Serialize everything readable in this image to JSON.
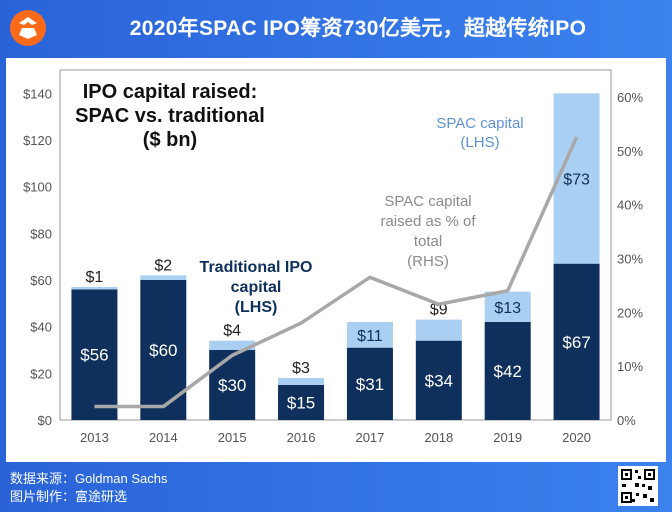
{
  "header": {
    "title": "2020年SPAC IPO筹资730亿美元，超越传统IPO"
  },
  "footer": {
    "source": "数据来源：Goldman Sachs",
    "producer": "图片制作：富途研选"
  },
  "colors": {
    "traditional": "#0f2f5c",
    "spac": "#a9d0f2",
    "line": "#a8a8a8",
    "label_light": "#5d93d6"
  },
  "icons": {
    "logo": "futu-logo-icon",
    "qr": "qr-code-icon"
  },
  "chart_data": {
    "type": "bar",
    "title": "IPO capital raised:\nSPAC vs. traditional\n($ bn)",
    "categories": [
      "2013",
      "2014",
      "2015",
      "2016",
      "2017",
      "2018",
      "2019",
      "2020"
    ],
    "series": [
      {
        "name": "Traditional IPO capital (LHS)",
        "values": [
          56,
          60,
          30,
          15,
          31,
          34,
          42,
          67
        ]
      },
      {
        "name": "SPAC capital (LHS)",
        "values": [
          1,
          2,
          4,
          3,
          11,
          9,
          13,
          73
        ]
      },
      {
        "name": "SPAC capital raised as % of total (RHS)",
        "values": [
          2.5,
          2.5,
          12,
          18,
          26.5,
          21.5,
          24,
          52.5
        ]
      }
    ],
    "bar_labels": {
      "traditional": [
        "$56",
        "$60",
        "$30",
        "$15",
        "$31",
        "$34",
        "$42",
        "$67"
      ],
      "spac": [
        "$1",
        "$2",
        "$4",
        "$3",
        "$11",
        "$9",
        "$13",
        "$73"
      ]
    },
    "ylim": [
      0,
      150
    ],
    "y2lim": [
      0,
      65
    ],
    "yticks": [
      "$0",
      "$20",
      "$40",
      "$60",
      "$80",
      "$100",
      "$120",
      "$140"
    ],
    "yticks_values": [
      0,
      20,
      40,
      60,
      80,
      100,
      120,
      140
    ],
    "y2ticks": [
      "0%",
      "10%",
      "20%",
      "30%",
      "40%",
      "50%",
      "60%"
    ],
    "y2ticks_values": [
      0,
      10,
      20,
      30,
      40,
      50,
      60
    ],
    "annotations": {
      "traditional": "Traditional IPO\ncapital\n(LHS)",
      "spac": "SPAC capital\n(LHS)",
      "pct": "SPAC capital\nraised as % of\ntotal\n(RHS)"
    }
  }
}
